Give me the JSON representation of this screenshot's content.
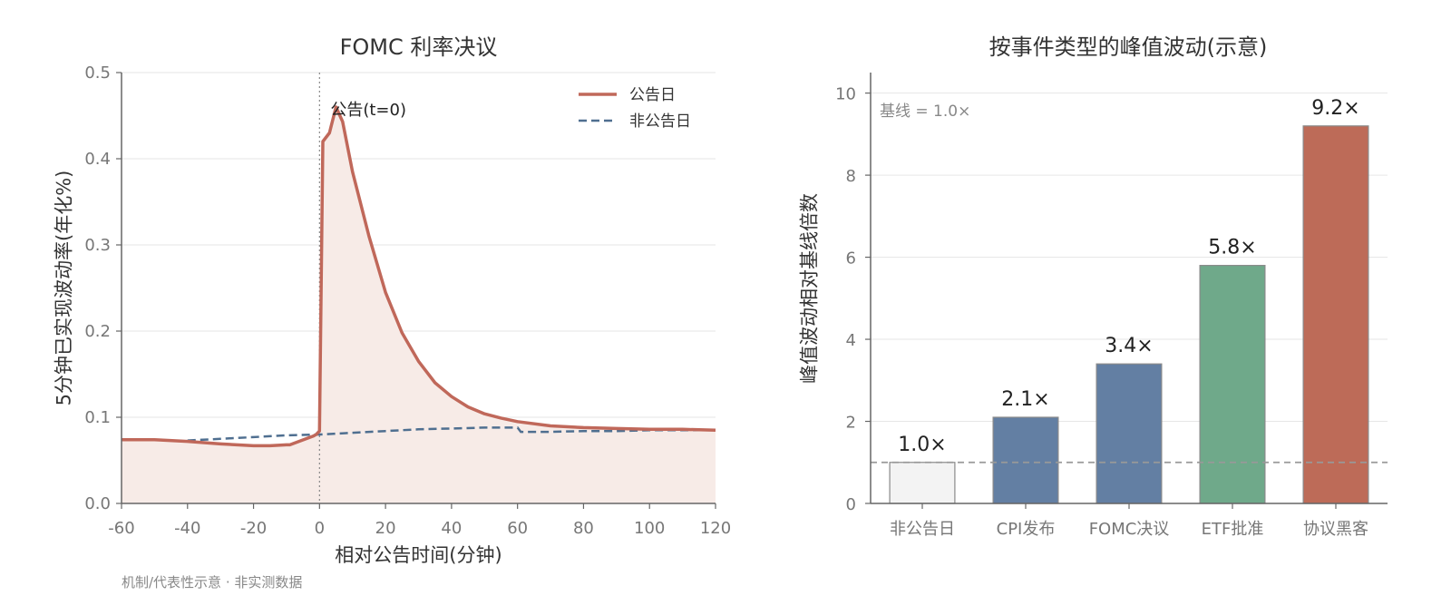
{
  "footnote": "机制/代表性示意 · 非实测数据",
  "chart_data": [
    {
      "type": "line",
      "title": "FOMC 利率决议",
      "xlabel": "相对公告时间(分钟)",
      "ylabel": "5分钟已实现波动率(年化%)",
      "xlim": [
        -60,
        120
      ],
      "ylim": [
        0,
        0.5
      ],
      "xticks": [
        "-60",
        "-40",
        "-20",
        "0",
        "20",
        "40",
        "60",
        "80",
        "100",
        "120"
      ],
      "yticks": [
        "0.0",
        "0.1",
        "0.2",
        "0.3",
        "0.4",
        "0.5"
      ],
      "grid": true,
      "legend_position": "top-right",
      "annotation": {
        "text": "公告(t=0)",
        "x": 0,
        "y": 0.455
      },
      "vline_x": 0,
      "series": [
        {
          "name": "公告日",
          "style": "solid",
          "color": "#c0685a",
          "fill": true,
          "fill_color": "#f7ebe7",
          "x": [
            -60,
            -50,
            -40,
            -30,
            -20,
            -15,
            -10,
            -9,
            -2,
            -1,
            0,
            1,
            3,
            5,
            7,
            10,
            15,
            20,
            25,
            30,
            35,
            40,
            45,
            50,
            55,
            60,
            70,
            80,
            90,
            100,
            110,
            120
          ],
          "y": [
            0.074,
            0.074,
            0.072,
            0.069,
            0.067,
            0.067,
            0.068,
            0.068,
            0.078,
            0.08,
            0.084,
            0.42,
            0.43,
            0.46,
            0.443,
            0.385,
            0.31,
            0.245,
            0.198,
            0.165,
            0.14,
            0.124,
            0.112,
            0.104,
            0.099,
            0.095,
            0.09,
            0.088,
            0.087,
            0.086,
            0.086,
            0.085
          ]
        },
        {
          "name": "非公告日",
          "style": "dashed",
          "color": "#4f6f90",
          "x": [
            -40,
            -30,
            -20,
            -10,
            0,
            10,
            20,
            30,
            40,
            50,
            60,
            61,
            70,
            80,
            90,
            100,
            110,
            120
          ],
          "y": [
            0.073,
            0.075,
            0.077,
            0.079,
            0.08,
            0.082,
            0.084,
            0.086,
            0.087,
            0.088,
            0.088,
            0.083,
            0.083,
            0.084,
            0.084,
            0.085,
            0.085,
            0.085
          ]
        }
      ]
    },
    {
      "type": "bar",
      "title": "按事件类型的峰值波动(示意)",
      "xlabel": "",
      "ylabel": "峰值波动相对基线倍数",
      "ylim": [
        0,
        10.5
      ],
      "yticks": [
        "0",
        "2",
        "4",
        "6",
        "8",
        "10"
      ],
      "grid": true,
      "baseline": {
        "value": 1.0,
        "label": "基线 = 1.0×"
      },
      "categories": [
        "非公告日",
        "CPI发布",
        "FOMC决议",
        "ETF批准",
        "协议黑客"
      ],
      "values": [
        1.0,
        2.1,
        3.4,
        5.8,
        9.2
      ],
      "value_labels": [
        "1.0×",
        "2.1×",
        "3.4×",
        "5.8×",
        "9.2×"
      ],
      "colors": [
        "#f3f3f3",
        "#637fa3",
        "#637fa3",
        "#6fa98a",
        "#bd6b58"
      ]
    }
  ]
}
